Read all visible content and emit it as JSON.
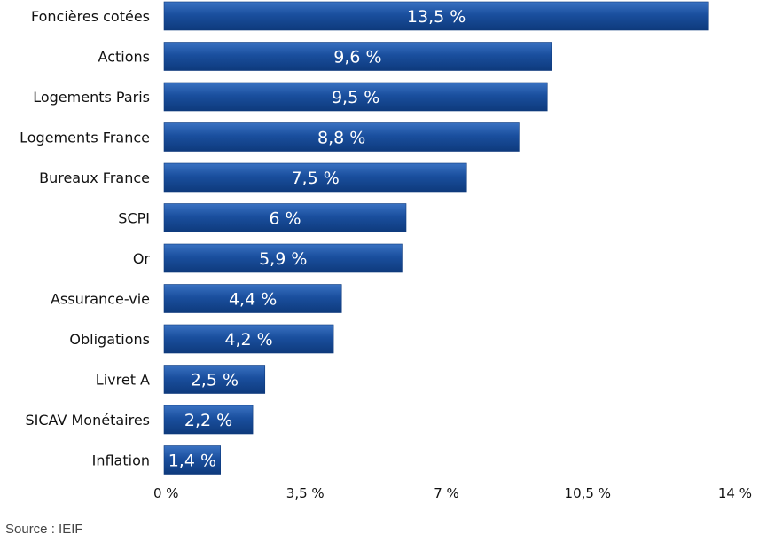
{
  "chart_data": {
    "type": "bar",
    "orientation": "horizontal",
    "categories": [
      "Foncières cotées",
      "Actions",
      "Logements Paris",
      "Logements France",
      "Bureaux France",
      "SCPI",
      "Or",
      "Assurance-vie",
      "Obligations",
      "Livret A",
      "SICAV Monétaires",
      "Inflation"
    ],
    "values": [
      13.5,
      9.6,
      9.5,
      8.8,
      7.5,
      6,
      5.9,
      4.4,
      4.2,
      2.5,
      2.2,
      1.4
    ],
    "data_labels": [
      "13,5 %",
      "9,6 %",
      "9,5 %",
      "8,8 %",
      "7,5 %",
      "6 %",
      "5,9 %",
      "4,4 %",
      "4,2 %",
      "2,5 %",
      "2,2 %",
      "1,4 %"
    ],
    "xlim": [
      0,
      14
    ],
    "x_ticks": [
      0,
      3.5,
      7,
      10.5,
      14
    ],
    "x_tick_labels": [
      "0 %",
      "3,5 %",
      "7 %",
      "10,5 %",
      "14 %"
    ],
    "title": "",
    "xlabel": "",
    "ylabel": "",
    "grid": false,
    "legend": "none",
    "bar_color": "#1a4f9e",
    "bar_color_dark": "#0e3a7c",
    "bar_color_light": "#3a72c2"
  },
  "source_note": "Source : IEIF"
}
